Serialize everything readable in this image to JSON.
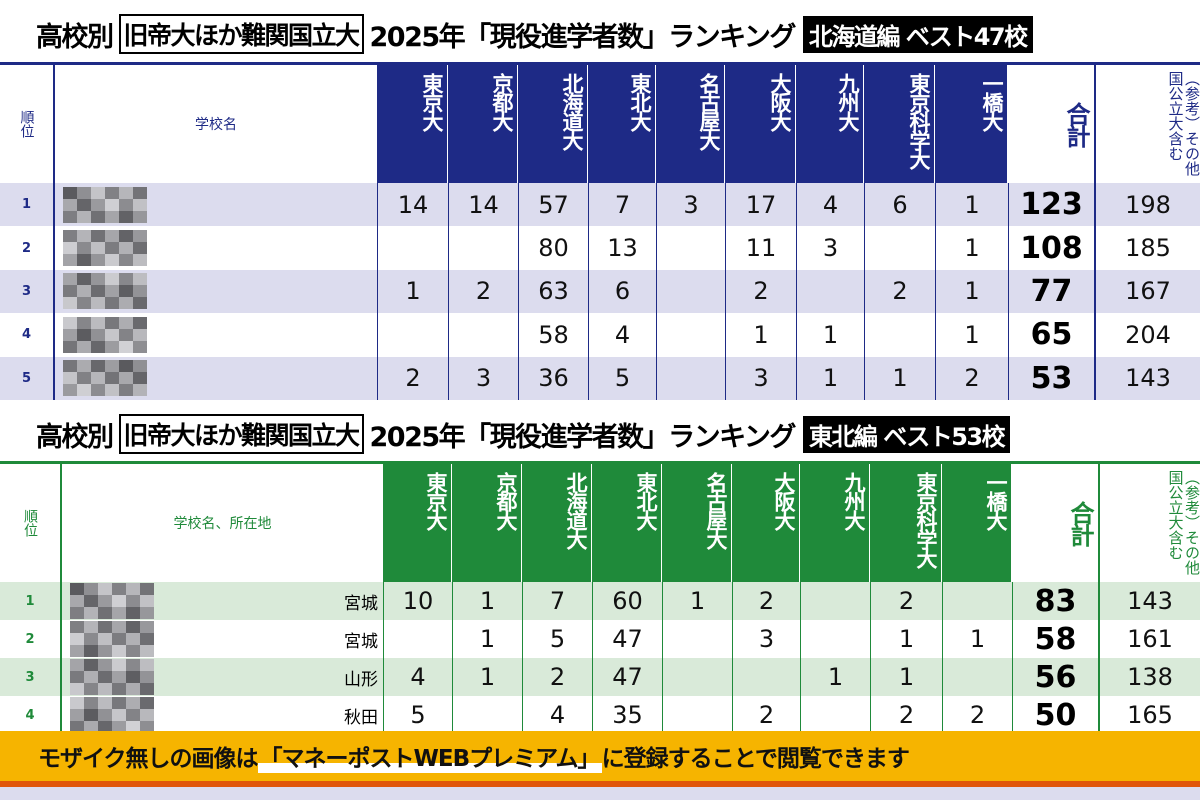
{
  "universities": [
    "東京大",
    "京都大",
    "北海道大",
    "東北大",
    "名古屋大",
    "大阪大",
    "九州大",
    "東京科学大",
    "一橋大"
  ],
  "total_label": "合計",
  "ref_label": "（参考）その他国公立大含む",
  "rank_label": "順位",
  "colors": {
    "hokkaido": "#1e2a86",
    "hokkaido_row": "#dcdcee",
    "tohoku": "#1f8a3a",
    "tohoku_row": "#d9ead9",
    "banner": "#f6b400"
  },
  "hokkaido": {
    "title_prefix": "高校別",
    "title_box": "旧帝大ほか難関国立大",
    "title_main": "2025年「現役進学者数」ランキング",
    "title_badge": "北海道編 ベスト47校",
    "name_label": "学校名",
    "rows": [
      {
        "rank": "1",
        "values": [
          "14",
          "14",
          "57",
          "7",
          "3",
          "17",
          "4",
          "6",
          "1"
        ],
        "total": "123",
        "ref": "198"
      },
      {
        "rank": "2",
        "values": [
          "",
          "",
          "80",
          "13",
          "",
          "11",
          "3",
          "",
          "1"
        ],
        "total": "108",
        "ref": "185"
      },
      {
        "rank": "3",
        "values": [
          "1",
          "2",
          "63",
          "6",
          "",
          "2",
          "",
          "2",
          "1"
        ],
        "total": "77",
        "ref": "167"
      },
      {
        "rank": "4",
        "values": [
          "",
          "",
          "58",
          "4",
          "",
          "1",
          "1",
          "",
          "1"
        ],
        "total": "65",
        "ref": "204"
      },
      {
        "rank": "5",
        "values": [
          "2",
          "3",
          "36",
          "5",
          "",
          "3",
          "1",
          "1",
          "2"
        ],
        "total": "53",
        "ref": "143"
      }
    ]
  },
  "tohoku": {
    "title_prefix": "高校別",
    "title_box": "旧帝大ほか難関国立大",
    "title_main": "2025年「現役進学者数」ランキング",
    "title_badge": "東北編 ベスト53校",
    "name_label": "学校名、所在地",
    "rows": [
      {
        "rank": "1",
        "pref": "宮城",
        "values": [
          "10",
          "1",
          "7",
          "60",
          "1",
          "2",
          "",
          "2",
          ""
        ],
        "total": "83",
        "ref": "143"
      },
      {
        "rank": "2",
        "pref": "宮城",
        "values": [
          "",
          "1",
          "5",
          "47",
          "",
          "3",
          "",
          "1",
          "1"
        ],
        "total": "58",
        "ref": "161"
      },
      {
        "rank": "3",
        "pref": "山形",
        "values": [
          "4",
          "1",
          "2",
          "47",
          "",
          "",
          "1",
          "1",
          ""
        ],
        "total": "56",
        "ref": "138"
      },
      {
        "rank": "4",
        "pref": "秋田",
        "values": [
          "5",
          "",
          "4",
          "35",
          "",
          "2",
          "",
          "2",
          "2"
        ],
        "total": "50",
        "ref": "165"
      }
    ]
  },
  "banner": {
    "pre": "モザイク無しの画像は",
    "highlight": "「マネーポストWEBプレミアム」",
    "post": "に登録することで閲覧できます"
  }
}
